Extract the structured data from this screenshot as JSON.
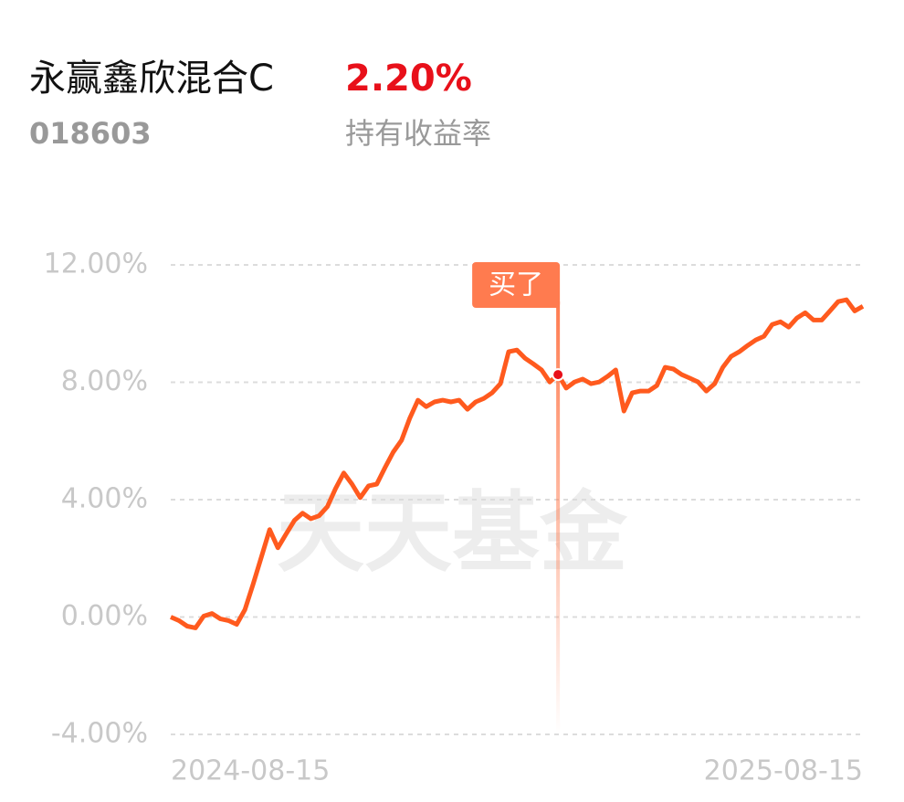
{
  "header": {
    "name": "永赢鑫欣混合C",
    "return": "2.20%",
    "code": "018603",
    "return_label": "持有收益率"
  },
  "chart_data": {
    "type": "line",
    "watermark": "天天基金",
    "categories": [
      "2024-08-15",
      null,
      null,
      null,
      null,
      null,
      null,
      null,
      null,
      null,
      null,
      null,
      null,
      null,
      null,
      null,
      null,
      null,
      null,
      null,
      null,
      null,
      null,
      null,
      null,
      null,
      null,
      null,
      null,
      null,
      null,
      null,
      null,
      null,
      null,
      null,
      null,
      null,
      null,
      null,
      null,
      null,
      null,
      null,
      null,
      null,
      null,
      null,
      null,
      null,
      null,
      null,
      null,
      null,
      null,
      null,
      null,
      null,
      null,
      null,
      null,
      null,
      null,
      null,
      null,
      null,
      null,
      null,
      null,
      null,
      null,
      null,
      null,
      null,
      null,
      null,
      null,
      null,
      null,
      null,
      null,
      null,
      null,
      null,
      "2025-08-15"
    ],
    "series": [
      {
        "name": "持有收益率",
        "color": "#ff5a1e",
        "values": [
          0,
          -0.12,
          -0.31,
          -0.37,
          0.03,
          0.12,
          -0.06,
          -0.12,
          -0.25,
          0.25,
          1.12,
          2.05,
          2.98,
          2.36,
          2.83,
          3.29,
          3.54,
          3.35,
          3.45,
          3.76,
          4.38,
          4.91,
          4.53,
          4.07,
          4.47,
          4.53,
          5.09,
          5.62,
          6.02,
          6.77,
          7.39,
          7.17,
          7.33,
          7.39,
          7.33,
          7.39,
          7.08,
          7.33,
          7.45,
          7.64,
          7.95,
          9.04,
          9.1,
          8.82,
          8.63,
          8.42,
          8.01,
          8.26,
          7.8,
          8.01,
          8.11,
          7.95,
          8.01,
          8.2,
          8.42,
          7.02,
          7.64,
          7.7,
          7.7,
          7.89,
          8.51,
          8.45,
          8.26,
          8.14,
          8.01,
          7.7,
          7.95,
          8.51,
          8.88,
          9.04,
          9.25,
          9.44,
          9.57,
          9.97,
          10.06,
          9.88,
          10.19,
          10.37,
          10.12,
          10.12,
          10.43,
          10.75,
          10.81,
          10.43,
          10.59
        ]
      }
    ],
    "annotation": {
      "text": "买了",
      "at": 47
    },
    "ylim": [
      -4,
      12
    ],
    "yticks": [
      {
        "value": -4,
        "label": "-4.00%"
      },
      {
        "value": 0,
        "label": "0.00%"
      },
      {
        "value": 4,
        "label": "4.00%"
      },
      {
        "value": 8,
        "label": "8.00%"
      },
      {
        "value": 12,
        "label": "12.00%"
      }
    ],
    "grid": true
  }
}
